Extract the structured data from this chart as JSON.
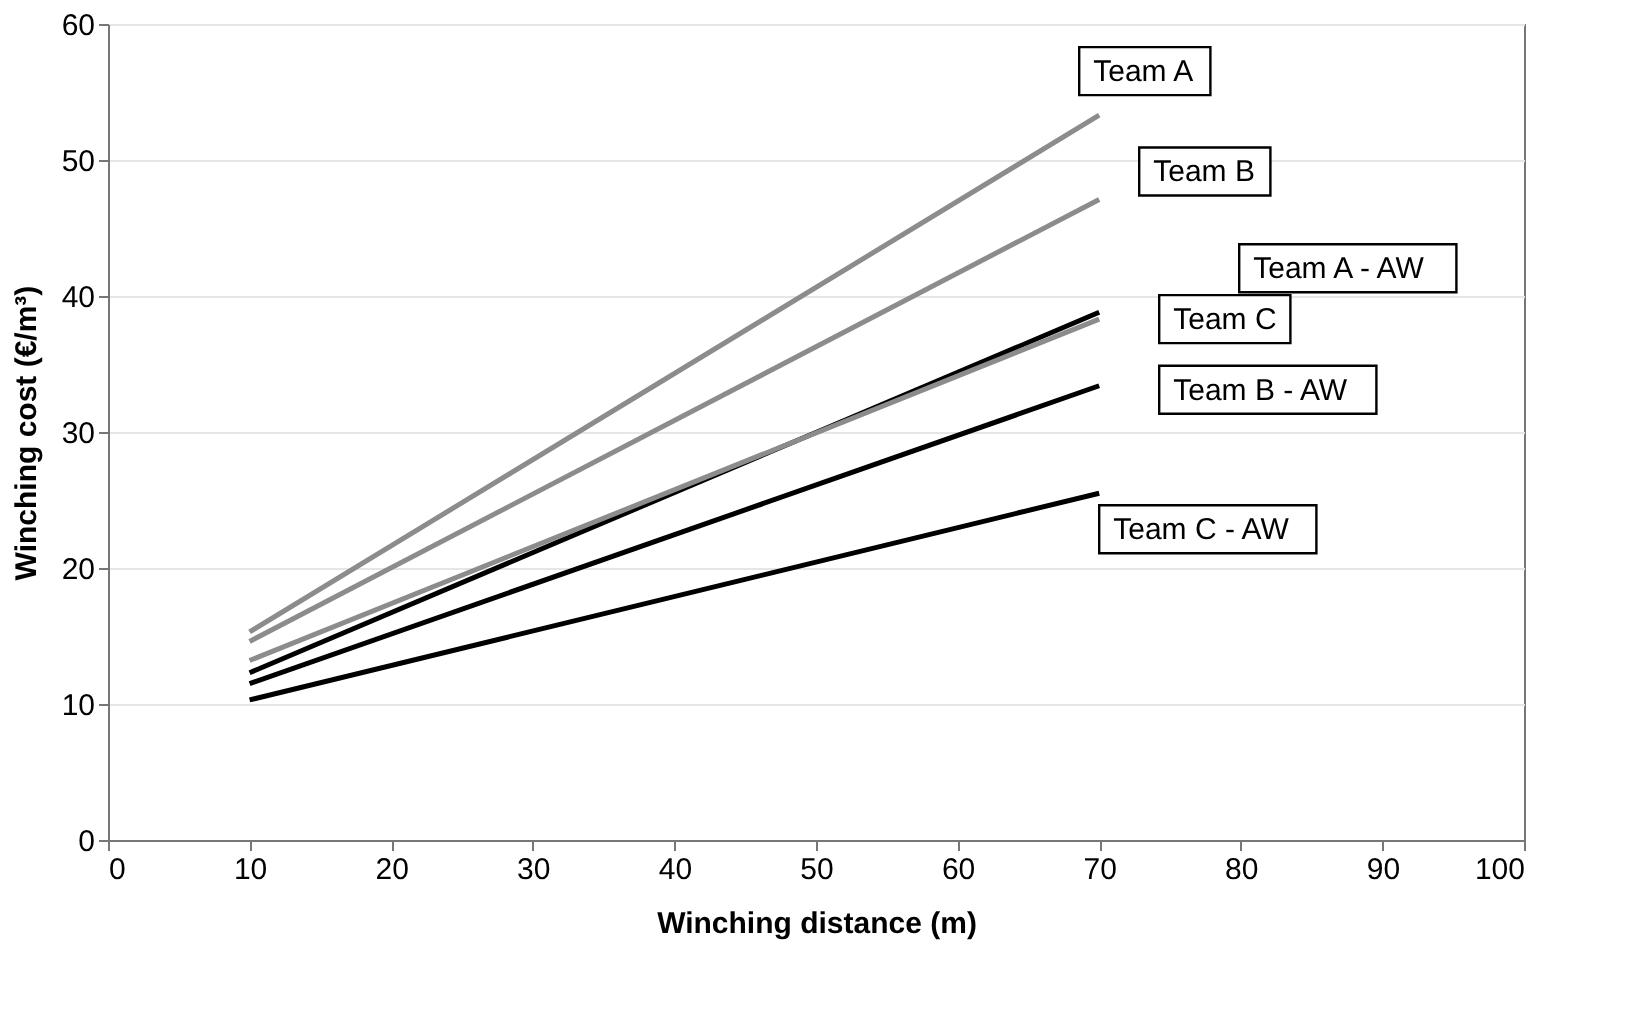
{
  "chart_data": {
    "type": "line",
    "xlabel": "Winching distance (m)",
    "ylabel": "Winching cost (€/m³)",
    "x": [
      10,
      70
    ],
    "xlim": [
      0,
      100
    ],
    "xticks": [
      0,
      10,
      20,
      30,
      40,
      50,
      60,
      70,
      80,
      90,
      100
    ],
    "ylim": [
      0,
      60
    ],
    "yticks": [
      0,
      10,
      20,
      30,
      40,
      50,
      60
    ],
    "grid": "y",
    "legend": "right",
    "marker": "none",
    "line_style": "solid",
    "series": [
      {
        "name": "Team A",
        "color": "#8c8c8c",
        "values": [
          15.3,
          53.3
        ]
      },
      {
        "name": "Team B",
        "color": "#8c8c8c",
        "values": [
          14.6,
          47.1
        ]
      },
      {
        "name": "Team A - AW",
        "color": "#000000",
        "values": [
          12.3,
          38.8
        ]
      },
      {
        "name": "Team C",
        "color": "#8c8c8c",
        "values": [
          13.2,
          38.3
        ]
      },
      {
        "name": "Team B - AW",
        "color": "#000000",
        "values": [
          11.5,
          33.4
        ]
      },
      {
        "name": "Team C - AW",
        "color": "#000000",
        "values": [
          10.3,
          25.5
        ]
      }
    ]
  }
}
